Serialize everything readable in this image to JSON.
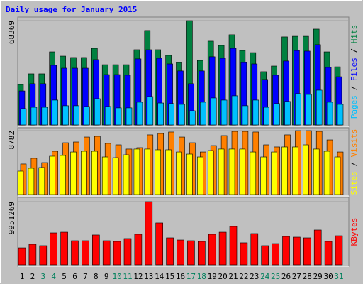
{
  "chart_data": [
    {
      "type": "bar",
      "title": "Daily usage for January 2015",
      "ylim": [
        0,
        68369
      ],
      "yticks": [
        68369
      ],
      "legend_separator": "/",
      "series": [
        {
          "name": "Hits",
          "color": "#008040",
          "values": [
            26500,
            33500,
            33500,
            47900,
            45100,
            44200,
            44200,
            50200,
            39500,
            39500,
            39500,
            49300,
            61900,
            49300,
            45600,
            40900,
            68369,
            42300,
            54900,
            52100,
            59100,
            48800,
            47400,
            34900,
            38600,
            57700,
            58100,
            58100,
            62800,
            47900,
            38100
          ]
        },
        {
          "name": "Files",
          "color": "#0000ff",
          "values": [
            22300,
            27000,
            27000,
            39100,
            37200,
            37200,
            37200,
            42800,
            33000,
            33000,
            32600,
            43300,
            49300,
            43700,
            40000,
            35400,
            27000,
            35400,
            44700,
            43700,
            50200,
            40900,
            40000,
            29800,
            32600,
            41900,
            48800,
            48400,
            52600,
            37700,
            31600
          ]
        },
        {
          "name": "Pages",
          "color": "#00c0ff",
          "values": [
            10700,
            11600,
            11600,
            16300,
            12600,
            12600,
            12100,
            17200,
            12100,
            11200,
            11200,
            14900,
            18600,
            14400,
            14000,
            13500,
            9300,
            14900,
            17700,
            16300,
            19100,
            12600,
            16300,
            11600,
            14000,
            15400,
            20500,
            20000,
            22800,
            14900,
            13500
          ]
        }
      ]
    },
    {
      "type": "bar",
      "ylim": [
        0,
        8782
      ],
      "yticks": [
        8782
      ],
      "legend_separator": "/",
      "series": [
        {
          "name": "Visits",
          "color": "#ff8000",
          "values": [
            4200,
            4980,
            4390,
            5950,
            7120,
            7220,
            7900,
            8000,
            7030,
            6830,
            6250,
            6440,
            8200,
            8390,
            8590,
            7900,
            7120,
            5850,
            6730,
            8100,
            8680,
            8680,
            8590,
            6830,
            6540,
            8200,
            8782,
            8782,
            8680,
            7510,
            5850
          ]
        },
        {
          "name": "Sites",
          "color": "#ffff00",
          "values": [
            3220,
            3610,
            3710,
            5270,
            5370,
            5850,
            5950,
            5950,
            5170,
            5070,
            5460,
            6250,
            6250,
            6150,
            6150,
            5850,
            5560,
            5170,
            6050,
            6250,
            6250,
            6250,
            5850,
            5170,
            5850,
            6540,
            6540,
            6830,
            6250,
            5950,
            5170
          ]
        }
      ]
    },
    {
      "type": "bar",
      "ylim": [
        0,
        9951269
      ],
      "yticks": [
        9951269
      ],
      "categories": [
        "1",
        "2",
        "3",
        "4",
        "5",
        "6",
        "7",
        "8",
        "9",
        "10",
        "11",
        "12",
        "13",
        "14",
        "15",
        "16",
        "17",
        "18",
        "19",
        "20",
        "21",
        "22",
        "23",
        "24",
        "25",
        "26",
        "27",
        "28",
        "29",
        "30",
        "31"
      ],
      "category_colors": [
        "#000000",
        "#000000",
        "#00805c",
        "#00805c",
        "#000000",
        "#000000",
        "#000000",
        "#000000",
        "#000000",
        "#00805c",
        "#00805c",
        "#000000",
        "#000000",
        "#000000",
        "#000000",
        "#000000",
        "#00805c",
        "#00805c",
        "#000000",
        "#000000",
        "#000000",
        "#000000",
        "#000000",
        "#00805c",
        "#00805c",
        "#000000",
        "#000000",
        "#000000",
        "#000000",
        "#000000",
        "#00805c"
      ],
      "series": [
        {
          "name": "KBytes",
          "color": "#ff0000",
          "values": [
            2680000,
            3240000,
            3020000,
            5030000,
            5140000,
            3800000,
            3800000,
            4700000,
            3800000,
            3690000,
            4140000,
            4810000,
            9951269,
            6600000,
            4250000,
            3910000,
            3800000,
            3690000,
            4810000,
            5140000,
            6040000,
            3470000,
            4920000,
            3020000,
            3350000,
            4470000,
            4360000,
            4250000,
            5480000,
            3690000,
            4580000
          ]
        }
      ]
    }
  ]
}
